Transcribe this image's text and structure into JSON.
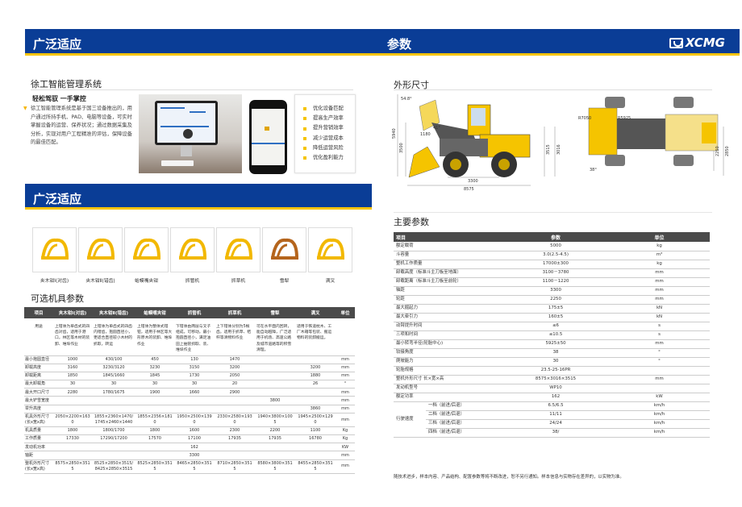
{
  "header": {
    "left_title": "广泛适应",
    "center_title": "参数",
    "logo": "XCMG",
    "brand_color": "#0a3d96",
    "accent_color": "#f5c400"
  },
  "section2": {
    "title": "广泛适应"
  },
  "system": {
    "title": "徐工智能管理系统",
    "subtitle": "轻松驾驭 一手掌控",
    "text": "徐工智能管理系统是基于国三设备推出的，用户通过所持手机、PAD、电脑等设备，可实时掌握设备的运营、保养状况；通过数据采集及分析，实现对用户工程精准的评估，保障设备的最佳匹配。",
    "benefits": [
      "优化设备匹配",
      "提高生产效率",
      "提升营销效率",
      "减少运营成本",
      "降低运营风险",
      "优化盈利能力"
    ]
  },
  "attachments": [
    "夹木钳Ⅰ(对齿)",
    "夹木钳Ⅱ(错齿)",
    "蛤蟆嘴夹钳",
    "抓管机",
    "抓草机",
    "雪犁",
    "满叉"
  ],
  "attach_table": {
    "title": "可选机具参数",
    "headers": [
      "项目",
      "夹木钳Ⅰ(对齿)",
      "夹木钳Ⅱ(错齿)",
      "蛤蟆嘴夹钳",
      "抓管机",
      "抓草机",
      "雪犁",
      "满叉",
      "单位"
    ],
    "use_label": "用途",
    "uses": [
      "上钳体为单齿式的四齿对齿，适用于港口，林区等木材的装卸、堆垛作业",
      "上钳体为单齿式的四齿内错齿，抱圆直径小，更适合直径较小木材的抓取，转运",
      "上钳体为整体式钳钳，适用于林区等大形原木的装卸、堆垛作业",
      "下钳体由两层与叉子组成，可移动，最小抱圆直径小，满足油田上抽管抓取、装、堆垛作业",
      "上下钳体分别为5根齿，适用于抓草、秸秆等清物料作业",
      "可在水平面内回转，能自动越障，广泛适用于机场、高速公路及城市道路等的积雪清理。",
      "适用于铁道枕木、工厂木箱等包装、搬运物料的装卸搬运。"
    ],
    "rows": [
      [
        "最小抱圆直径",
        "1000",
        "430/100",
        "450",
        "130",
        "1470",
        "",
        "",
        "mm"
      ],
      [
        "卸载高度",
        "3160",
        "3230/3120",
        "3230",
        "3150",
        "3200",
        "",
        "3200",
        "mm"
      ],
      [
        "卸载距离",
        "1850",
        "1845/1660",
        "1845",
        "1730",
        "2050",
        "",
        "1880",
        "mm"
      ],
      [
        "最大卸载角",
        "30",
        "30",
        "30",
        "30",
        "20",
        "",
        "26",
        "°"
      ],
      [
        "最大开口尺寸",
        "2280",
        "1780/1675",
        "1900",
        "1660",
        "2900",
        "",
        "",
        "mm"
      ],
      [
        "最大铲雪宽度",
        "",
        "",
        "",
        "",
        "",
        "3800",
        "",
        "mm"
      ],
      [
        "举升高度",
        "",
        "",
        "",
        "",
        "",
        "",
        "3860",
        "mm"
      ],
      [
        "机具外形尺寸(长x宽x高)",
        "2050×2200×1630",
        "1855×2360×1470/1745×2460×1440",
        "1855×2356×1810",
        "1950×2500×1390",
        "2330×2580×1930",
        "1940×3800×1005",
        "1945×2500×1290",
        "mm"
      ],
      [
        "机具质量",
        "1800",
        "1800/1700",
        "1800",
        "1600",
        "2300",
        "2200",
        "1100",
        "Kg"
      ],
      [
        "工作质量",
        "17330",
        "17290/17200",
        "17570",
        "17100",
        "17935",
        "17935",
        "16780",
        "Kg"
      ],
      [
        "发动机功率",
        "",
        "",
        "",
        "162",
        "",
        "",
        "",
        "KW"
      ],
      [
        "轴距",
        "",
        "",
        "",
        "3300",
        "",
        "",
        "",
        "mm"
      ],
      [
        "整机外形尺寸(长x宽x高)",
        "8575×2850×3515",
        "8525×2850×3515/8425×2850×3515",
        "8525×2850×3515",
        "8465×2850×3515",
        "8710×2850×3515",
        "8580×3800×3515",
        "8455×2850×3515",
        "mm"
      ]
    ]
  },
  "dimensions": {
    "title": "外形尺寸",
    "labels": [
      "54.8°",
      "41°",
      "1180",
      "3500",
      "5940",
      "3300",
      "8575",
      "3515",
      "3016",
      "R7050",
      "R5925",
      "38°",
      "2250",
      "2850"
    ]
  },
  "main_params": {
    "title": "主要参数",
    "headers": [
      "项目",
      "参数",
      "单位"
    ],
    "rows": [
      [
        "额定载荷",
        "5000",
        "kg"
      ],
      [
        "斗容量",
        "3.0(2.5-4.5)",
        "m³"
      ],
      [
        "整机工作质量",
        "17000±300",
        "kg"
      ],
      [
        "卸载高度（标准斗主刀板至地面）",
        "3100－3780",
        "mm"
      ],
      [
        "卸载距离（标准斗主刀板至前轮）",
        "1100－1220",
        "mm"
      ],
      [
        "轴距",
        "3300",
        "mm"
      ],
      [
        "轮距",
        "2250",
        "mm"
      ],
      [
        "最大掘起力",
        "175±5",
        "kN"
      ],
      [
        "最大牵引力",
        "160±5",
        "kN"
      ],
      [
        "动臂提升时间",
        "≤6",
        "s"
      ],
      [
        "三项和时间",
        "≤10.5",
        "s"
      ],
      [
        "最小转弯半径(轮胎中心)",
        "5925±50",
        "mm"
      ],
      [
        "铰接角度",
        "38",
        "°"
      ],
      [
        "爬坡能力",
        "30",
        "°"
      ],
      [
        "轮胎规格",
        "23.5-25-16PR",
        ""
      ],
      [
        "整机外形尺寸 长×宽×高",
        "8575×3016×3515",
        "mm"
      ],
      [
        "发动机型号",
        "WP10",
        ""
      ],
      [
        "额定功率",
        "162",
        "kW"
      ]
    ],
    "speed_label": "行驶速度",
    "speed_rows": [
      [
        "一档（前进/后退）",
        "6.5/6.5",
        "km/h"
      ],
      [
        "二档（前进/后退）",
        "11/11",
        "km/h"
      ],
      [
        "三档（前进/后退）",
        "24/24",
        "km/h"
      ],
      [
        "四档（前进/后退）",
        "38/",
        "km/h"
      ]
    ],
    "note": "随技术进步，样本内容、产品结构、配置参数等将不断改进，恕不另行通知。样本信息与实物存在差异的，以实物为准。"
  }
}
